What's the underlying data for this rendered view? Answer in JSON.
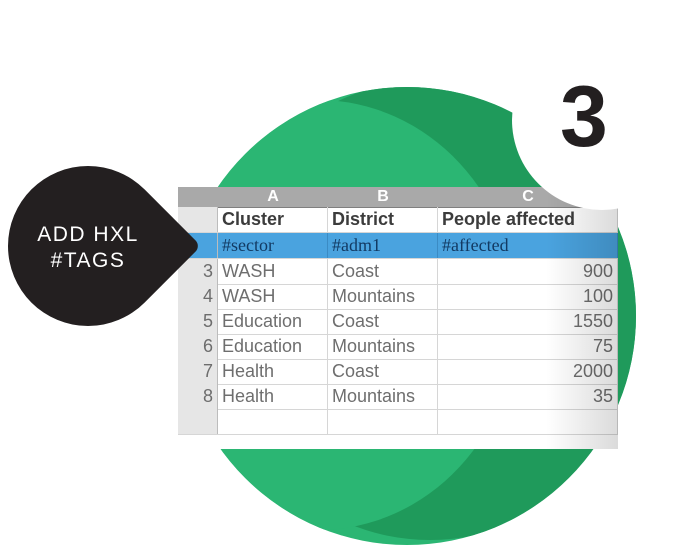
{
  "callout": {
    "line1": "ADD HXL",
    "line2": "#TAGS"
  },
  "step_number": "3",
  "sheet": {
    "columns": [
      "A",
      "B",
      "C"
    ],
    "header_row": {
      "num": "",
      "cluster": "Cluster",
      "district": "District",
      "people": "People affected"
    },
    "tag_row": {
      "num": "",
      "cluster": "#sector",
      "district": "#adm1",
      "people": "#affected"
    },
    "rows": [
      {
        "num": "3",
        "cluster": "WASH",
        "district": "Coast",
        "people": "900"
      },
      {
        "num": "4",
        "cluster": "WASH",
        "district": "Mountains",
        "people": "100"
      },
      {
        "num": "5",
        "cluster": "Education",
        "district": "Coast",
        "people": "1550"
      },
      {
        "num": "6",
        "cluster": "Education",
        "district": "Mountains",
        "people": "75"
      },
      {
        "num": "7",
        "cluster": "Health",
        "district": "Coast",
        "people": "2000"
      },
      {
        "num": "8",
        "cluster": "Health",
        "district": "Mountains",
        "people": "35"
      }
    ]
  },
  "colors": {
    "green": "#2bb673",
    "dark_green": "#1f9a5b",
    "tag_blue": "#4aa3df",
    "bubble": "#231f20"
  }
}
